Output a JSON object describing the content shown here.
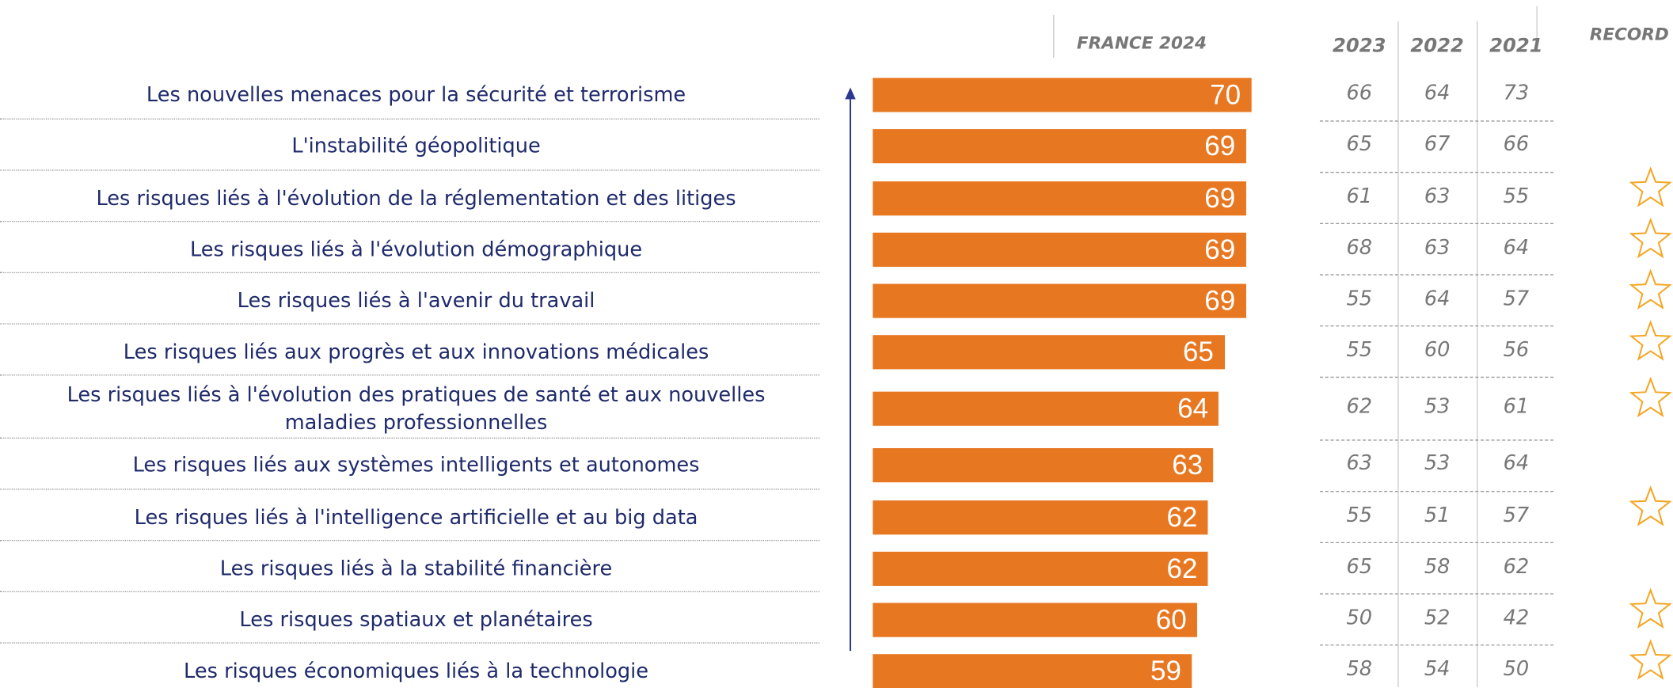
{
  "chart_data": {
    "type": "bar",
    "orientation": "horizontal",
    "categories": [
      "Les nouvelles menaces pour la sécurité et terrorisme",
      "L'instabilité géopolitique",
      "Les risques liés à l'évolution de la réglementation et des litiges",
      "Les risques liés à l'évolution démographique",
      "Les risques liés à l'avenir du travail",
      "Les risques liés aux progrès et aux innovations médicales",
      "Les risques liés à l'évolution des pratiques de santé et aux nouvelles maladies professionnelles",
      "Les risques liés aux systèmes intelligents et autonomes",
      "Les risques liés à l'intelligence artificielle et au big data",
      "Les risques liés à la stabilité financière",
      "Les risques spatiaux et planétaires",
      "Les risques économiques liés à la technologie"
    ],
    "series": [
      {
        "name": "FRANCE 2024",
        "color": "#e87722",
        "values": [
          70,
          69,
          69,
          69,
          69,
          65,
          64,
          63,
          62,
          62,
          60,
          59
        ]
      }
    ],
    "history": [
      {
        "name": "2023",
        "values": [
          66,
          65,
          61,
          68,
          55,
          55,
          62,
          63,
          55,
          65,
          50,
          58
        ]
      },
      {
        "name": "2022",
        "values": [
          64,
          67,
          63,
          63,
          64,
          60,
          53,
          53,
          51,
          58,
          52,
          54
        ]
      },
      {
        "name": "2021",
        "values": [
          73,
          66,
          55,
          64,
          57,
          56,
          61,
          64,
          57,
          62,
          42,
          50
        ]
      }
    ],
    "record_header": "RECORD",
    "record": [
      false,
      false,
      true,
      true,
      true,
      true,
      true,
      false,
      true,
      false,
      true,
      true
    ],
    "record_color": "#f5a623"
  }
}
